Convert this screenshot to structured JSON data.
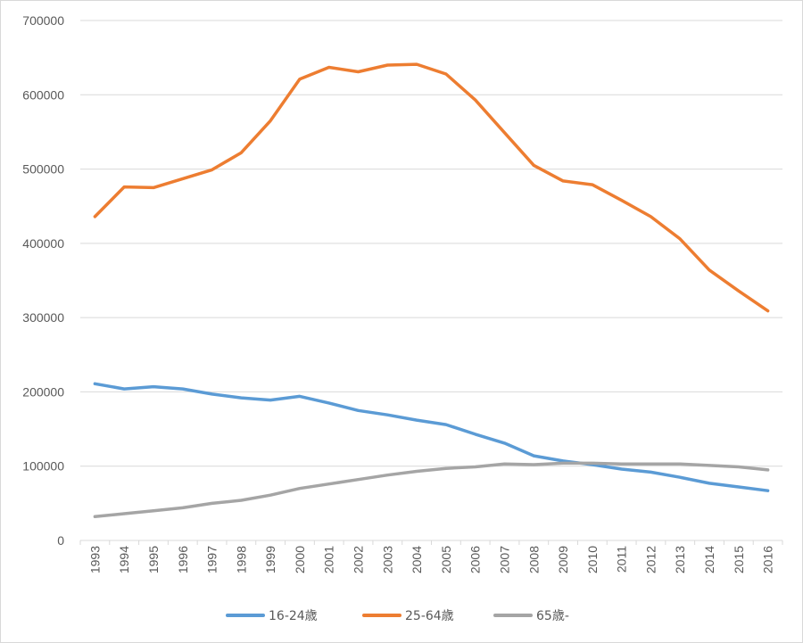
{
  "chart_data": {
    "type": "line",
    "title": "",
    "xlabel": "",
    "ylabel": "",
    "ylim": [
      0,
      700000
    ],
    "yticks": [
      0,
      100000,
      200000,
      300000,
      400000,
      500000,
      600000,
      700000
    ],
    "ytick_labels": [
      "0",
      "100000",
      "200000",
      "300000",
      "400000",
      "500000",
      "600000",
      "700000"
    ],
    "grid": "horizontal",
    "legend_position": "bottom",
    "categories": [
      "1993",
      "1994",
      "1995",
      "1996",
      "1997",
      "1998",
      "1999",
      "2000",
      "2001",
      "2002",
      "2003",
      "2004",
      "2005",
      "2006",
      "2007",
      "2008",
      "2009",
      "2010",
      "2011",
      "2012",
      "2013",
      "2014",
      "2015",
      "2016"
    ],
    "series": [
      {
        "name": "16-24歳",
        "color": "#5b9bd5",
        "values": [
          211000,
          204000,
          207000,
          204000,
          197000,
          192000,
          189000,
          194000,
          185000,
          175000,
          169000,
          162000,
          156000,
          143000,
          131000,
          114000,
          107000,
          102000,
          96000,
          92000,
          85000,
          77000,
          72000,
          67000
        ]
      },
      {
        "name": "25-64歳",
        "color": "#ed7d31",
        "values": [
          436000,
          476000,
          475000,
          487000,
          499000,
          522000,
          565000,
          621000,
          637000,
          631000,
          640000,
          641000,
          628000,
          593000,
          549000,
          505000,
          484000,
          479000,
          458000,
          436000,
          406000,
          364000,
          336000,
          309000
        ]
      },
      {
        "name": "65歳-",
        "color": "#a5a5a5",
        "values": [
          32000,
          36000,
          40000,
          44000,
          50000,
          54000,
          61000,
          70000,
          76000,
          82000,
          88000,
          93000,
          97000,
          99000,
          103000,
          102000,
          104000,
          104000,
          103000,
          103000,
          103000,
          101000,
          99000,
          95000
        ]
      }
    ]
  }
}
